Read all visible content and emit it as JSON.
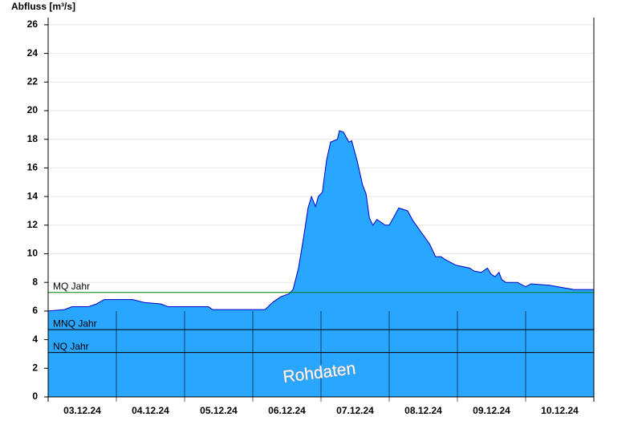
{
  "chart_data": {
    "type": "area",
    "title": "Abfluss [m³/s]",
    "annotation": "Rohdaten",
    "color": "#29a6ff",
    "line_color": "#0000cc",
    "grid": true,
    "ylim": [
      0,
      26.5
    ],
    "yticks": [
      0,
      2,
      4,
      6,
      8,
      10,
      12,
      14,
      16,
      18,
      20,
      22,
      24,
      26
    ],
    "xlim": [
      0,
      8
    ],
    "xticks": [
      0,
      1,
      2,
      3,
      4,
      5,
      6,
      7,
      8
    ],
    "x_labels": [
      "03.12.24",
      "04.12.24",
      "05.12.24",
      "06.12.24",
      "07.12.24",
      "08.12.24",
      "09.12.24",
      "10.12.24"
    ],
    "reference_lines": [
      {
        "name": "MQ Jahr",
        "value": 7.3,
        "color": "#008000"
      },
      {
        "name": "MNQ Jahr",
        "value": 4.7,
        "color": "#000000"
      },
      {
        "name": "NQ Jahr",
        "value": 3.1,
        "color": "#000000"
      }
    ],
    "x": [
      0,
      0.24,
      0.35,
      0.59,
      0.71,
      0.82,
      1.24,
      1.41,
      1.65,
      1.76,
      2.35,
      2.41,
      3.18,
      3.29,
      3.41,
      3.53,
      3.59,
      3.67,
      3.74,
      3.81,
      3.86,
      3.92,
      3.96,
      4.02,
      4.08,
      4.14,
      4.24,
      4.27,
      4.33,
      4.41,
      4.45,
      4.53,
      4.61,
      4.66,
      4.71,
      4.76,
      4.82,
      4.88,
      4.94,
      5.0,
      5.06,
      5.14,
      5.27,
      5.35,
      5.47,
      5.59,
      5.68,
      5.76,
      5.82,
      5.98,
      6.18,
      6.24,
      6.35,
      6.44,
      6.49,
      6.55,
      6.61,
      6.65,
      6.71,
      6.88,
      7.0,
      7.08,
      7.35,
      7.59,
      7.71,
      8.0
    ],
    "values": [
      6.0,
      6.1,
      6.3,
      6.3,
      6.5,
      6.8,
      6.8,
      6.6,
      6.5,
      6.3,
      6.3,
      6.1,
      6.1,
      6.6,
      7.0,
      7.2,
      7.5,
      9.0,
      11.0,
      13.2,
      14.0,
      13.3,
      14.0,
      14.3,
      16.5,
      17.8,
      18.0,
      18.6,
      18.5,
      17.8,
      17.9,
      16.5,
      14.8,
      14.2,
      12.5,
      12.0,
      12.4,
      12.2,
      12.0,
      12.0,
      12.5,
      13.2,
      13.0,
      12.3,
      11.5,
      10.7,
      9.8,
      9.8,
      9.6,
      9.2,
      9.0,
      8.8,
      8.7,
      9.0,
      8.6,
      8.4,
      8.7,
      8.2,
      8.0,
      8.0,
      7.7,
      7.9,
      7.8,
      7.6,
      7.5,
      7.5
    ]
  }
}
